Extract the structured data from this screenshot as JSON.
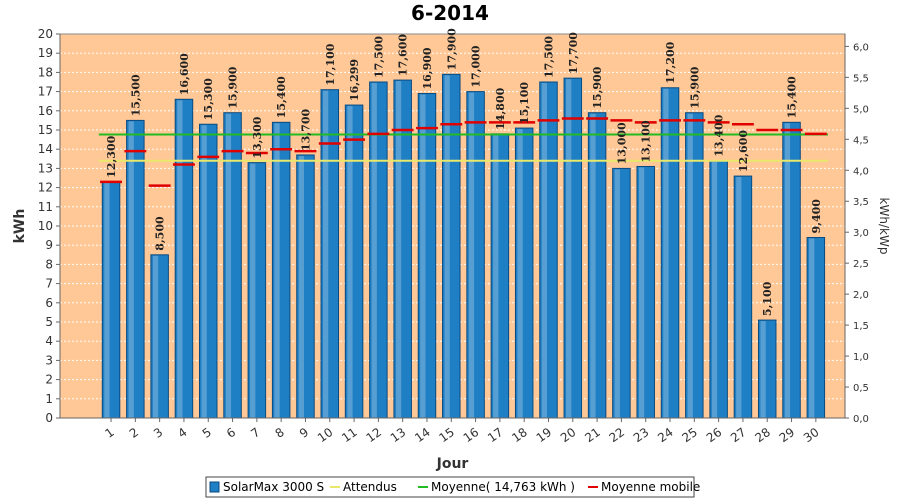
{
  "chart_data": {
    "type": "bar",
    "title": "6-2014",
    "xlabel": "Jour",
    "ylabel": "kWh",
    "y2label": "kWh/kWp",
    "ylim": [
      0,
      20
    ],
    "y2lim": [
      0,
      6.2
    ],
    "categories": [
      "1",
      "2",
      "3",
      "4",
      "5",
      "6",
      "7",
      "8",
      "9",
      "10",
      "11",
      "12",
      "13",
      "14",
      "15",
      "16",
      "17",
      "18",
      "19",
      "20",
      "21",
      "22",
      "23",
      "24",
      "25",
      "26",
      "27",
      "28",
      "29",
      "30"
    ],
    "series": [
      {
        "name": "SolarMax 3000 S",
        "type": "bar",
        "color": "#1f7fc4",
        "values": [
          12.3,
          15.5,
          8.5,
          16.6,
          15.3,
          15.9,
          13.3,
          15.4,
          13.7,
          17.1,
          16.299,
          17.5,
          17.6,
          16.9,
          17.9,
          17.0,
          14.8,
          15.1,
          17.5,
          17.7,
          15.9,
          13.0,
          13.1,
          17.2,
          15.9,
          13.4,
          12.6,
          5.1,
          15.4,
          9.4
        ],
        "labels": [
          "12,300",
          "15,500",
          "8,500",
          "16,600",
          "15,300",
          "15,900",
          "13,300",
          "15,400",
          "13,700",
          "17,100",
          "16,299",
          "17,500",
          "17,600",
          "16,900",
          "17,900",
          "17,000",
          "14,800",
          "15,100",
          "17,500",
          "17,700",
          "15,900",
          "13,000",
          "13,100",
          "17,200",
          "15,900",
          "13,400",
          "12,600",
          "5,100",
          "15,400",
          "9,400"
        ]
      },
      {
        "name": "Attendus",
        "type": "line",
        "color": "#e8e86a",
        "values": [
          13.4,
          13.4,
          13.4,
          13.4,
          13.4,
          13.4,
          13.4,
          13.4,
          13.4,
          13.4,
          13.4,
          13.4,
          13.4,
          13.4,
          13.4,
          13.4,
          13.4,
          13.4,
          13.4,
          13.4,
          13.4,
          13.4,
          13.4,
          13.4,
          13.4,
          13.4,
          13.4,
          13.4,
          13.4,
          13.4
        ]
      },
      {
        "name": "Moyenne( 14,763 kWh )",
        "type": "line",
        "color": "#22bb22",
        "values": [
          14.763,
          14.763,
          14.763,
          14.763,
          14.763,
          14.763,
          14.763,
          14.763,
          14.763,
          14.763,
          14.763,
          14.763,
          14.763,
          14.763,
          14.763,
          14.763,
          14.763,
          14.763,
          14.763,
          14.763,
          14.763,
          14.763,
          14.763,
          14.763,
          14.763,
          14.763,
          14.763,
          14.763,
          14.763,
          14.763
        ]
      },
      {
        "name": "Moyenne mobile",
        "type": "step",
        "color": "#e00000",
        "values": [
          12.3,
          13.9,
          12.1,
          13.2,
          13.6,
          13.9,
          13.8,
          14.0,
          13.9,
          14.3,
          14.5,
          14.8,
          15.0,
          15.1,
          15.3,
          15.4,
          15.4,
          15.4,
          15.5,
          15.6,
          15.6,
          15.5,
          15.4,
          15.5,
          15.5,
          15.4,
          15.3,
          15.0,
          15.0,
          14.8
        ]
      }
    ],
    "yticks": [
      "0",
      "1",
      "2",
      "3",
      "4",
      "5",
      "6",
      "7",
      "8",
      "9",
      "10",
      "11",
      "12",
      "13",
      "14",
      "15",
      "16",
      "17",
      "18",
      "19",
      "20"
    ],
    "y2ticks": [
      "0,0",
      "0,5",
      "1,0",
      "1,5",
      "2,0",
      "2,5",
      "3,0",
      "3,5",
      "4,0",
      "4,5",
      "5,0",
      "5,5",
      "6,0"
    ],
    "grid": true,
    "legend_position": "bottom",
    "colors": {
      "plot_background": "#ffc896",
      "bar_fill": "#1f7fc4",
      "bar_edge": "#0a4a80",
      "grid": "#ffffff"
    }
  }
}
